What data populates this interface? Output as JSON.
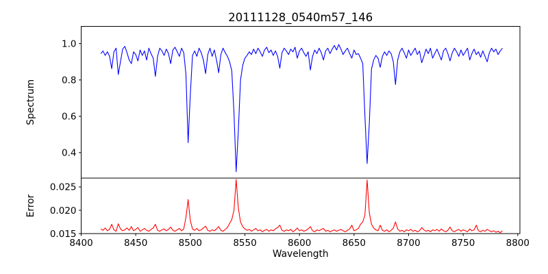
{
  "chart_data": {
    "type": "line",
    "title": "20111128_0540m57_146",
    "xlabel": "Wavelength",
    "xlim": [
      8400,
      8802
    ],
    "xticks": [
      8400,
      8450,
      8500,
      8550,
      8600,
      8650,
      8700,
      8750,
      8800
    ],
    "xtick_labels": [
      "8400",
      "8450",
      "8500",
      "8550",
      "8600",
      "8650",
      "8700",
      "8750",
      "8800"
    ],
    "x_start": 8418,
    "x_step": 2,
    "grid": false,
    "legend": false,
    "panels": [
      {
        "name": "spectrum",
        "ylabel": "Spectrum",
        "color": "#0000ff",
        "ylim": [
          0.26,
          1.095
        ],
        "yticks": [
          0.4,
          0.6,
          0.8,
          1.0
        ],
        "ytick_labels": [
          "0.4",
          "0.6",
          "0.8",
          "1.0"
        ],
        "absorption_line_centers": [
          8498,
          8542,
          8662
        ],
        "absorption_line_minima": [
          0.455,
          0.295,
          0.34
        ],
        "y": [
          0.945,
          0.96,
          0.935,
          0.955,
          0.93,
          0.862,
          0.955,
          0.975,
          0.83,
          0.9,
          0.97,
          0.985,
          0.95,
          0.91,
          0.89,
          0.955,
          0.94,
          0.905,
          0.965,
          0.935,
          0.96,
          0.91,
          0.975,
          0.945,
          0.92,
          0.82,
          0.93,
          0.975,
          0.96,
          0.935,
          0.97,
          0.945,
          0.89,
          0.965,
          0.98,
          0.955,
          0.93,
          0.975,
          0.95,
          0.83,
          0.455,
          0.72,
          0.935,
          0.96,
          0.93,
          0.975,
          0.95,
          0.91,
          0.835,
          0.94,
          0.975,
          0.93,
          0.965,
          0.91,
          0.84,
          0.94,
          0.975,
          0.95,
          0.93,
          0.9,
          0.85,
          0.62,
          0.295,
          0.52,
          0.8,
          0.88,
          0.92,
          0.935,
          0.955,
          0.94,
          0.97,
          0.945,
          0.975,
          0.955,
          0.93,
          0.965,
          0.98,
          0.95,
          0.965,
          0.935,
          0.96,
          0.93,
          0.865,
          0.95,
          0.975,
          0.96,
          0.94,
          0.97,
          0.955,
          0.98,
          0.92,
          0.96,
          0.975,
          0.95,
          0.93,
          0.955,
          0.855,
          0.93,
          0.965,
          0.945,
          0.975,
          0.95,
          0.91,
          0.96,
          0.975,
          0.945,
          0.97,
          0.99,
          0.965,
          0.995,
          0.97,
          0.94,
          0.96,
          0.975,
          0.945,
          0.92,
          0.965,
          0.94,
          0.945,
          0.92,
          0.89,
          0.6,
          0.34,
          0.56,
          0.86,
          0.91,
          0.935,
          0.92,
          0.87,
          0.93,
          0.955,
          0.935,
          0.96,
          0.945,
          0.9,
          0.775,
          0.91,
          0.955,
          0.975,
          0.95,
          0.92,
          0.965,
          0.935,
          0.955,
          0.975,
          0.94,
          0.96,
          0.895,
          0.93,
          0.97,
          0.945,
          0.975,
          0.92,
          0.945,
          0.97,
          0.94,
          0.91,
          0.96,
          0.975,
          0.945,
          0.905,
          0.95,
          0.975,
          0.955,
          0.93,
          0.965,
          0.935,
          0.955,
          0.975,
          0.91,
          0.945,
          0.97,
          0.94,
          0.955,
          0.925,
          0.96,
          0.93,
          0.9,
          0.95,
          0.975,
          0.955,
          0.97,
          0.94,
          0.96,
          0.975
        ]
      },
      {
        "name": "error",
        "ylabel": "Error",
        "color": "#ff0000",
        "ylim": [
          0.015,
          0.0269
        ],
        "yticks": [
          0.015,
          0.02,
          0.025
        ],
        "ytick_labels": [
          "0.015",
          "0.020",
          "0.025"
        ],
        "error_peak_centers": [
          8498,
          8542,
          8662
        ],
        "error_peak_maxima": [
          0.0223,
          0.0266,
          0.0265
        ],
        "y": [
          0.016,
          0.0157,
          0.0162,
          0.0156,
          0.0159,
          0.017,
          0.0158,
          0.0155,
          0.0171,
          0.016,
          0.0156,
          0.0158,
          0.0162,
          0.0157,
          0.0165,
          0.0156,
          0.0159,
          0.0163,
          0.0155,
          0.0158,
          0.0161,
          0.0157,
          0.0155,
          0.0159,
          0.0162,
          0.017,
          0.0157,
          0.0155,
          0.0158,
          0.016,
          0.0156,
          0.0159,
          0.0164,
          0.0157,
          0.0155,
          0.0158,
          0.0161,
          0.0156,
          0.016,
          0.0185,
          0.0223,
          0.0178,
          0.016,
          0.0157,
          0.0161,
          0.0156,
          0.0158,
          0.0162,
          0.0166,
          0.0157,
          0.0155,
          0.0158,
          0.0156,
          0.016,
          0.0165,
          0.0157,
          0.0155,
          0.0159,
          0.0163,
          0.0172,
          0.018,
          0.02,
          0.0266,
          0.0205,
          0.0175,
          0.0165,
          0.016,
          0.0157,
          0.0159,
          0.0155,
          0.0158,
          0.0161,
          0.0156,
          0.0158,
          0.0154,
          0.0157,
          0.0159,
          0.0155,
          0.0158,
          0.0156,
          0.016,
          0.0163,
          0.0168,
          0.0157,
          0.0155,
          0.0158,
          0.0156,
          0.0159,
          0.0154,
          0.0157,
          0.0162,
          0.0156,
          0.0158,
          0.0155,
          0.0157,
          0.016,
          0.0165,
          0.0156,
          0.0154,
          0.0158,
          0.0156,
          0.0159,
          0.0161,
          0.0155,
          0.0157,
          0.0154,
          0.0156,
          0.0158,
          0.0155,
          0.0157,
          0.0159,
          0.0156,
          0.0154,
          0.0157,
          0.016,
          0.0168,
          0.0156,
          0.0158,
          0.0161,
          0.017,
          0.0175,
          0.019,
          0.0265,
          0.0195,
          0.017,
          0.0162,
          0.0158,
          0.0156,
          0.0168,
          0.0157,
          0.0155,
          0.0158,
          0.0154,
          0.0157,
          0.0162,
          0.0175,
          0.016,
          0.0155,
          0.0157,
          0.0154,
          0.0158,
          0.0156,
          0.0159,
          0.0155,
          0.0157,
          0.0154,
          0.0156,
          0.0163,
          0.0158,
          0.0155,
          0.0157,
          0.0154,
          0.0158,
          0.0156,
          0.0159,
          0.0155,
          0.016,
          0.0156,
          0.0154,
          0.0157,
          0.0164,
          0.0156,
          0.0154,
          0.0157,
          0.0159,
          0.0155,
          0.0158,
          0.0156,
          0.0154,
          0.016,
          0.0156,
          0.0158,
          0.0168,
          0.0156,
          0.0154,
          0.0157,
          0.0155,
          0.0159,
          0.0156,
          0.0154,
          0.0156,
          0.0153,
          0.0155,
          0.0152,
          0.0156
        ]
      }
    ]
  }
}
